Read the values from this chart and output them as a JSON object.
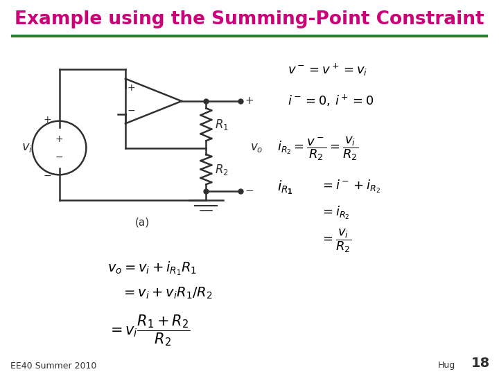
{
  "title": "Example using the Summing-Point Constraint",
  "title_color": "#CC0077",
  "title_fontsize": 19,
  "bar_color": "#2e7d32",
  "footer_left": "EE40 Summer 2010",
  "footer_right": "Hug",
  "footer_page": "18",
  "bg_color": "#ffffff",
  "eq1": "$v^- = v^+ = v_i$",
  "eq2": "$i^- = 0,\\, i^+ = 0$",
  "eq3": "$i_{R_2} = \\dfrac{v^-}{R_2} = \\dfrac{v_i}{R_2}$",
  "eq4a": "$i_{R_1}$",
  "eq4b": "$= i^- + i_{R_2}$",
  "eq4c": "$= i_{R_2}$",
  "eq4d": "$= \\dfrac{v_i}{R_2}$",
  "eq5a": "$v_o = v_i + i_{R_1}R_1$",
  "eq5b": "$= v_i + v_iR_1/R_2$",
  "eq5c": "$= v_i\\dfrac{R_1 + R_2}{R_2}$",
  "circuit_color": "#303030"
}
